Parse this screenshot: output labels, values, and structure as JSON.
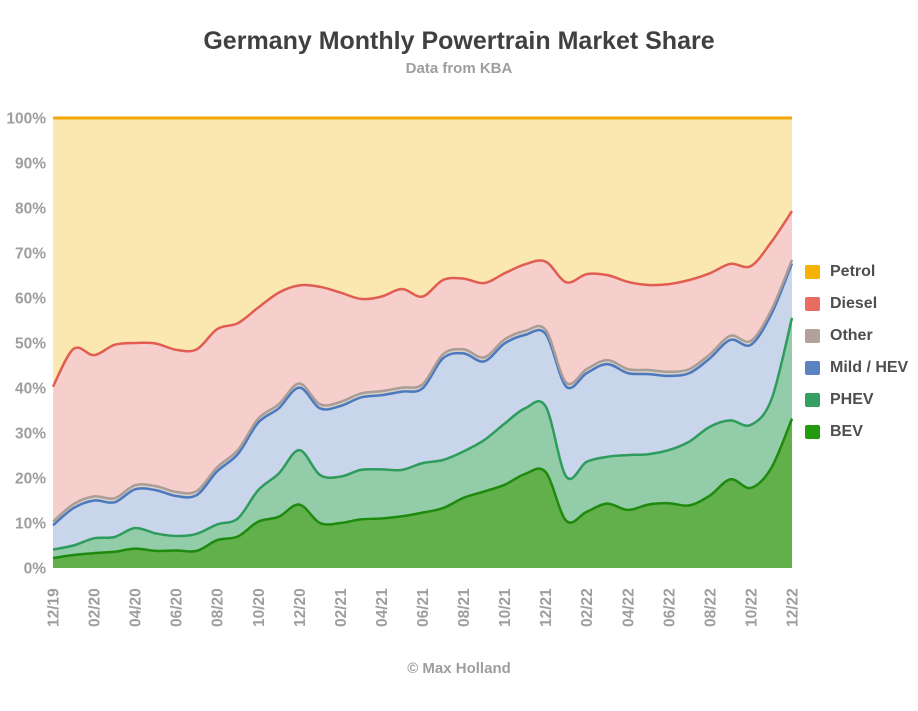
{
  "header": {
    "title": "Germany Monthly Powertrain Market Share",
    "subtitle": "Data from KBA"
  },
  "footer": {
    "text": "© Max Holland"
  },
  "style_colors": {
    "title_text": "#404040",
    "subtitle_text": "#9e9e9e",
    "axis_label_text": "#9e9e9e",
    "legend_text": "#4e4e4e",
    "gridline": "#cfcfcf",
    "background": "#ffffff"
  },
  "chart_data": {
    "type": "area",
    "stacked": true,
    "unit": "%",
    "title": "Germany Monthly Powertrain Market Share",
    "subtitle": "Data from KBA",
    "xlabel": "",
    "ylabel": "",
    "ylim": [
      0,
      100
    ],
    "ytick_labels": [
      "0%",
      "10%",
      "20%",
      "30%",
      "40%",
      "50%",
      "60%",
      "70%",
      "80%",
      "90%",
      "100%"
    ],
    "grid": true,
    "legend_position": "right",
    "x": [
      "12/19",
      "01/20",
      "02/20",
      "03/20",
      "04/20",
      "05/20",
      "06/20",
      "07/20",
      "08/20",
      "09/20",
      "10/20",
      "11/20",
      "12/20",
      "01/21",
      "02/21",
      "03/21",
      "04/21",
      "05/21",
      "06/21",
      "07/21",
      "08/21",
      "09/21",
      "10/21",
      "11/21",
      "12/21",
      "01/22",
      "02/22",
      "03/22",
      "04/22",
      "05/22",
      "06/22",
      "07/22",
      "08/22",
      "09/22",
      "10/22",
      "11/22",
      "12/22"
    ],
    "x_tick_step": 2,
    "x_tick_labels": [
      "12/19",
      "02/20",
      "04/20",
      "06/20",
      "08/20",
      "10/20",
      "12/20",
      "02/21",
      "04/21",
      "06/21",
      "08/21",
      "10/21",
      "12/21",
      "02/22",
      "04/22",
      "06/22",
      "08/22",
      "10/22",
      "12/22"
    ],
    "series": [
      {
        "name": "BEV",
        "stroke": "#1e8a0e",
        "fill": "#62b04b",
        "values": [
          2.2,
          2.9,
          3.3,
          3.6,
          4.3,
          3.8,
          3.9,
          3.8,
          6.2,
          7.0,
          10.3,
          11.4,
          14.1,
          10.0,
          10.0,
          10.8,
          11.0,
          11.5,
          12.3,
          13.3,
          15.6,
          17.0,
          18.5,
          20.9,
          21.3,
          10.5,
          12.5,
          14.3,
          12.9,
          14.1,
          14.4,
          13.9,
          16.1,
          19.7,
          17.8,
          22.3,
          33.2
        ]
      },
      {
        "name": "PHEV",
        "stroke": "#2e9c5c",
        "fill": "#93cca8",
        "values": [
          1.9,
          2.1,
          3.3,
          3.3,
          4.6,
          3.9,
          3.2,
          3.8,
          3.5,
          4.0,
          7.0,
          9.6,
          12.1,
          10.7,
          10.3,
          11.0,
          10.9,
          10.3,
          11.0,
          10.7,
          10.3,
          11.4,
          13.6,
          14.6,
          14.6,
          9.8,
          11.1,
          10.4,
          12.2,
          11.2,
          11.8,
          14.2,
          15.3,
          13.1,
          14.0,
          15.2,
          22.4
        ]
      },
      {
        "name": "Mild / HEV",
        "stroke": "#4c79bd",
        "fill": "#c8d5ea",
        "values": [
          5.4,
          8.3,
          8.4,
          7.7,
          8.6,
          9.6,
          8.9,
          8.6,
          11.8,
          14.3,
          15.0,
          14.5,
          13.9,
          14.8,
          15.7,
          16.1,
          16.5,
          17.4,
          16.6,
          22.6,
          21.8,
          17.5,
          17.8,
          16.3,
          16.1,
          20.0,
          19.7,
          20.6,
          18.2,
          17.8,
          16.5,
          15.2,
          15.2,
          17.9,
          17.8,
          19.0,
          12.1
        ]
      },
      {
        "name": "Other",
        "stroke": "#a89e97",
        "fill": "#d8d0ca",
        "values": [
          0.8,
          0.9,
          0.9,
          0.9,
          0.9,
          0.9,
          0.9,
          0.9,
          0.9,
          0.9,
          0.9,
          0.9,
          0.9,
          0.9,
          0.9,
          0.9,
          0.9,
          0.9,
          0.9,
          0.9,
          0.9,
          0.9,
          0.9,
          0.9,
          0.9,
          0.9,
          0.9,
          0.9,
          0.9,
          0.9,
          0.9,
          0.9,
          0.9,
          0.9,
          0.9,
          0.9,
          0.8
        ]
      },
      {
        "name": "Diesel",
        "stroke": "#e15d51",
        "fill": "#f6cecb",
        "values": [
          30.0,
          34.5,
          31.4,
          34.1,
          31.6,
          31.7,
          31.6,
          31.5,
          30.7,
          28.2,
          24.7,
          24.8,
          21.8,
          26.1,
          24.3,
          21.0,
          21.0,
          21.9,
          19.5,
          16.5,
          15.7,
          16.5,
          14.7,
          14.8,
          15.2,
          22.3,
          21.1,
          18.9,
          19.4,
          18.9,
          19.5,
          19.8,
          18.0,
          16.0,
          16.6,
          15.1,
          10.8
        ]
      },
      {
        "name": "Petrol",
        "stroke": "#f0a70a",
        "fill": "#fbe8b0",
        "values": [
          59.7,
          51.3,
          52.7,
          50.4,
          50.0,
          50.1,
          51.5,
          51.4,
          46.9,
          45.6,
          42.1,
          38.8,
          37.2,
          37.5,
          38.8,
          40.2,
          39.7,
          38.0,
          39.7,
          36.0,
          35.7,
          36.7,
          34.5,
          32.5,
          31.9,
          36.5,
          34.7,
          34.9,
          36.4,
          37.1,
          36.9,
          36.0,
          34.5,
          32.4,
          32.9,
          27.5,
          20.7
        ]
      }
    ],
    "legend_items": [
      {
        "label": "Petrol",
        "color": "#f6b101"
      },
      {
        "label": "Diesel",
        "color": "#ea6b60"
      },
      {
        "label": "Other",
        "color": "#b2a199"
      },
      {
        "label": "Mild / HEV",
        "color": "#5b82c1"
      },
      {
        "label": "PHEV",
        "color": "#36a064"
      },
      {
        "label": "BEV",
        "color": "#229b0f"
      }
    ]
  }
}
